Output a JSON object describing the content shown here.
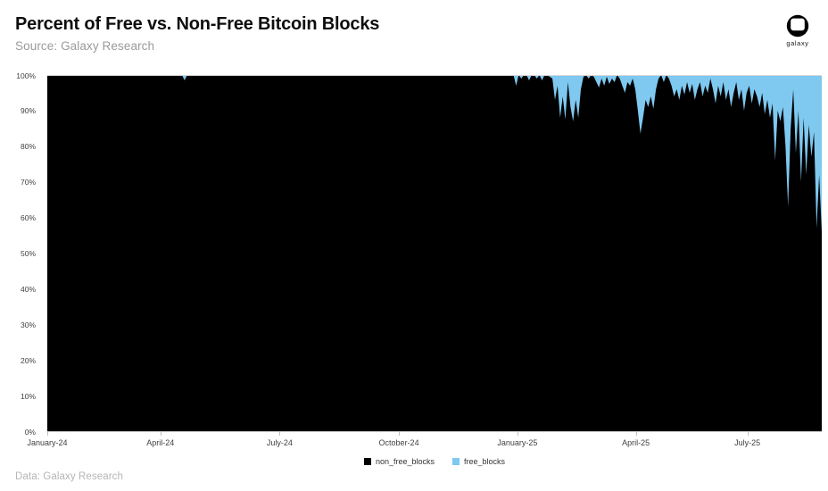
{
  "header": {
    "title": "Percent of Free vs. Non-Free Bitcoin Blocks",
    "subtitle": "Source: Galaxy Research"
  },
  "logo": {
    "label": "galaxy"
  },
  "footer": {
    "text": "Data: Galaxy Research"
  },
  "chart_data": {
    "type": "area",
    "variant": "stacked-percent",
    "title": "Percent of Free vs. Non-Free Bitcoin Blocks",
    "xlabel": "",
    "ylabel": "",
    "ylim": [
      0,
      100
    ],
    "grid": "top-line-only",
    "legend_position": "bottom-center",
    "colors": {
      "non_free_blocks": "#000000",
      "free_blocks": "#7fc8f0",
      "axis_line": "#c9c9c9",
      "grid_line": "#d9d9d9",
      "tick_text": "#404040"
    },
    "y_axis": {
      "ticks": [
        "0%",
        "10%",
        "20%",
        "30%",
        "40%",
        "50%",
        "60%",
        "70%",
        "80%",
        "90%",
        "100%"
      ]
    },
    "x_axis": {
      "ticks": [
        {
          "label": "January-24",
          "pos": 0.0
        },
        {
          "label": "April-24",
          "pos": 0.146
        },
        {
          "label": "July-24",
          "pos": 0.3
        },
        {
          "label": "October-24",
          "pos": 0.454
        },
        {
          "label": "January-25",
          "pos": 0.607
        },
        {
          "label": "April-25",
          "pos": 0.76
        },
        {
          "label": "July-25",
          "pos": 0.904
        }
      ]
    },
    "legend": [
      {
        "label": "non_free_blocks",
        "color": "#000000"
      },
      {
        "label": "free_blocks",
        "color": "#7fc8f0"
      }
    ],
    "series_note": "300 evenly spaced samples, January-2024 through ~September-2025. non_free_blocks is percent of blocks that are non-free; free_blocks = 100 - non_free_blocks. values_rle entries are [run_length, percent].",
    "series": [
      {
        "name": "non_free_blocks",
        "color": "#000000",
        "values_rle": [
          [
            53,
            100
          ],
          [
            1,
            98.5
          ],
          [
            127,
            100
          ],
          [
            1,
            97
          ],
          [
            1,
            100
          ],
          [
            1,
            99
          ],
          [
            2,
            100
          ],
          [
            1,
            98.5
          ],
          [
            2,
            100
          ],
          [
            1,
            99
          ],
          [
            1,
            100
          ],
          [
            1,
            98.5
          ],
          [
            2,
            100
          ],
          [
            1,
            99.5
          ],
          [
            1,
            99
          ],
          [
            1,
            93
          ],
          [
            1,
            97
          ],
          [
            1,
            88
          ],
          [
            1,
            94
          ],
          [
            1,
            87.5
          ],
          [
            1,
            98
          ],
          [
            1,
            91
          ],
          [
            1,
            87
          ],
          [
            1,
            93
          ],
          [
            1,
            88
          ],
          [
            1,
            96
          ],
          [
            1,
            99.5
          ],
          [
            1,
            100
          ],
          [
            1,
            99
          ],
          [
            1,
            100
          ],
          [
            1,
            99.5
          ],
          [
            1,
            98
          ],
          [
            1,
            96.5
          ],
          [
            1,
            99
          ],
          [
            1,
            97
          ],
          [
            1,
            99.5
          ],
          [
            1,
            97.5
          ],
          [
            1,
            99
          ],
          [
            1,
            98
          ],
          [
            1,
            100
          ],
          [
            1,
            99
          ],
          [
            1,
            97
          ],
          [
            1,
            95
          ],
          [
            1,
            98
          ],
          [
            1,
            97
          ],
          [
            1,
            99
          ],
          [
            1,
            96
          ],
          [
            1,
            90
          ],
          [
            1,
            83.5
          ],
          [
            1,
            88
          ],
          [
            1,
            93
          ],
          [
            1,
            91
          ],
          [
            1,
            94
          ],
          [
            1,
            90.5
          ],
          [
            1,
            96
          ],
          [
            1,
            99
          ],
          [
            1,
            100
          ],
          [
            1,
            98
          ],
          [
            1,
            100
          ],
          [
            1,
            99
          ],
          [
            1,
            97
          ],
          [
            1,
            94
          ],
          [
            1,
            96
          ],
          [
            1,
            93
          ],
          [
            1,
            97
          ],
          [
            1,
            94.5
          ],
          [
            1,
            98
          ],
          [
            1,
            95
          ],
          [
            1,
            97.5
          ],
          [
            1,
            93
          ],
          [
            1,
            96
          ],
          [
            1,
            98
          ],
          [
            1,
            94
          ],
          [
            1,
            97
          ],
          [
            1,
            95
          ],
          [
            1,
            99
          ],
          [
            1,
            96
          ],
          [
            1,
            92
          ],
          [
            1,
            97
          ],
          [
            1,
            94
          ],
          [
            1,
            98
          ],
          [
            1,
            93
          ],
          [
            1,
            96
          ],
          [
            1,
            91
          ],
          [
            1,
            95
          ],
          [
            1,
            98
          ],
          [
            1,
            93
          ],
          [
            1,
            96
          ],
          [
            1,
            90
          ],
          [
            1,
            95
          ],
          [
            1,
            97
          ],
          [
            1,
            92
          ],
          [
            1,
            96
          ],
          [
            1,
            94
          ],
          [
            1,
            91
          ],
          [
            1,
            95
          ],
          [
            1,
            89
          ],
          [
            1,
            93
          ],
          [
            1,
            88
          ],
          [
            1,
            92
          ],
          [
            1,
            76
          ],
          [
            1,
            90
          ],
          [
            1,
            87
          ],
          [
            1,
            91
          ],
          [
            1,
            80
          ],
          [
            1,
            63
          ],
          [
            1,
            85
          ],
          [
            1,
            96
          ],
          [
            1,
            78
          ],
          [
            1,
            90
          ],
          [
            1,
            70
          ],
          [
            1,
            88
          ],
          [
            1,
            72
          ],
          [
            1,
            86
          ],
          [
            1,
            77
          ],
          [
            1,
            84
          ],
          [
            1,
            57
          ],
          [
            1,
            72
          ],
          [
            1,
            56
          ]
        ]
      },
      {
        "name": "free_blocks",
        "color": "#7fc8f0",
        "derived": "100 - non_free_blocks"
      }
    ]
  }
}
